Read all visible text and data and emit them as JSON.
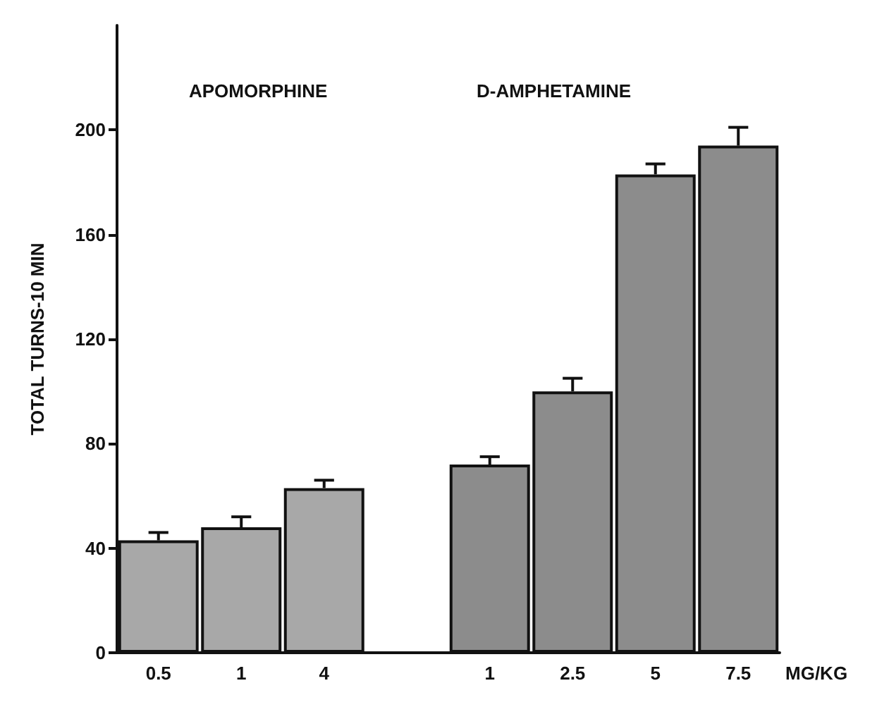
{
  "chart_data": {
    "type": "bar",
    "ylabel": "TOTAL TURNS-10 MIN",
    "xlabel": "MG/KG",
    "categories": [
      "0.5",
      "1",
      "4",
      null,
      "1",
      "2.5",
      "5",
      "7.5"
    ],
    "values": [
      43,
      48,
      63,
      null,
      72,
      100,
      183,
      194
    ],
    "colors": [
      "#a8a8a8",
      "#a8a8a8",
      "#a8a8a8",
      "#ffffff",
      "#8c8c8c",
      "#8c8c8c",
      "#8c8c8c",
      "#8c8c8c"
    ],
    "errors": [
      [
        43,
        46
      ],
      [
        48,
        52
      ],
      [
        63,
        66
      ],
      null,
      [
        72,
        75
      ],
      [
        100,
        105
      ],
      [
        183,
        187
      ],
      [
        194,
        201
      ]
    ],
    "annotations": [
      "APOMORPHINE",
      "D-AMPHETAMINE"
    ],
    "ylim": [
      0,
      240
    ],
    "yticks": [
      0,
      40,
      80,
      120,
      160,
      200
    ]
  }
}
